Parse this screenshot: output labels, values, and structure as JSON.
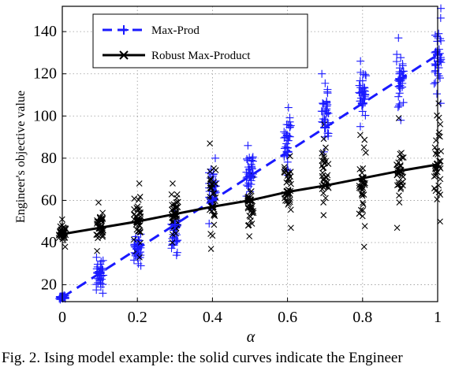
{
  "caption": "Fig. 2.   Ising model example: the solid curves indicate the Engineer",
  "chart_data": {
    "type": "scatter",
    "title": "",
    "xlabel": "α",
    "ylabel": "Engineer's objective value",
    "xlim": [
      0,
      1
    ],
    "ylim": [
      12,
      152
    ],
    "xticks": [
      "0",
      "0.2",
      "0.4",
      "0.6",
      "0.8",
      "1"
    ],
    "yticks": [
      "20",
      "40",
      "60",
      "80",
      "100",
      "120",
      "140"
    ],
    "grid": true,
    "legend_position": "top-left",
    "x": [
      0,
      0.1,
      0.2,
      0.3,
      0.4,
      0.5,
      0.6,
      0.7,
      0.8,
      0.9,
      1.0
    ],
    "series": [
      {
        "name": "Max-Prod",
        "color": "#1a1aff",
        "line_style": "dashed",
        "marker": "plus",
        "mean": [
          14,
          25.5,
          37,
          48.5,
          60,
          71.5,
          83,
          94.5,
          106,
          117.5,
          129
        ],
        "sample_range": [
          [
            13,
            15
          ],
          [
            16,
            33
          ],
          [
            29,
            44
          ],
          [
            34,
            55
          ],
          [
            49,
            80
          ],
          [
            62,
            86
          ],
          [
            72,
            104
          ],
          [
            83,
            120
          ],
          [
            95,
            126
          ],
          [
            98,
            137
          ],
          [
            106,
            151
          ]
        ]
      },
      {
        "name": "Robust Max-Product",
        "color": "#000000",
        "line_style": "solid",
        "marker": "x",
        "mean": [
          44,
          47,
          50,
          53.5,
          57,
          60,
          64,
          67,
          70.5,
          74,
          77
        ],
        "sample_range": [
          [
            38,
            51
          ],
          [
            36,
            59
          ],
          [
            33,
            68
          ],
          [
            40,
            68
          ],
          [
            37,
            87
          ],
          [
            43,
            72
          ],
          [
            47,
            81
          ],
          [
            53,
            96
          ],
          [
            38,
            91
          ],
          [
            47,
            99
          ],
          [
            50,
            106
          ]
        ]
      }
    ]
  }
}
